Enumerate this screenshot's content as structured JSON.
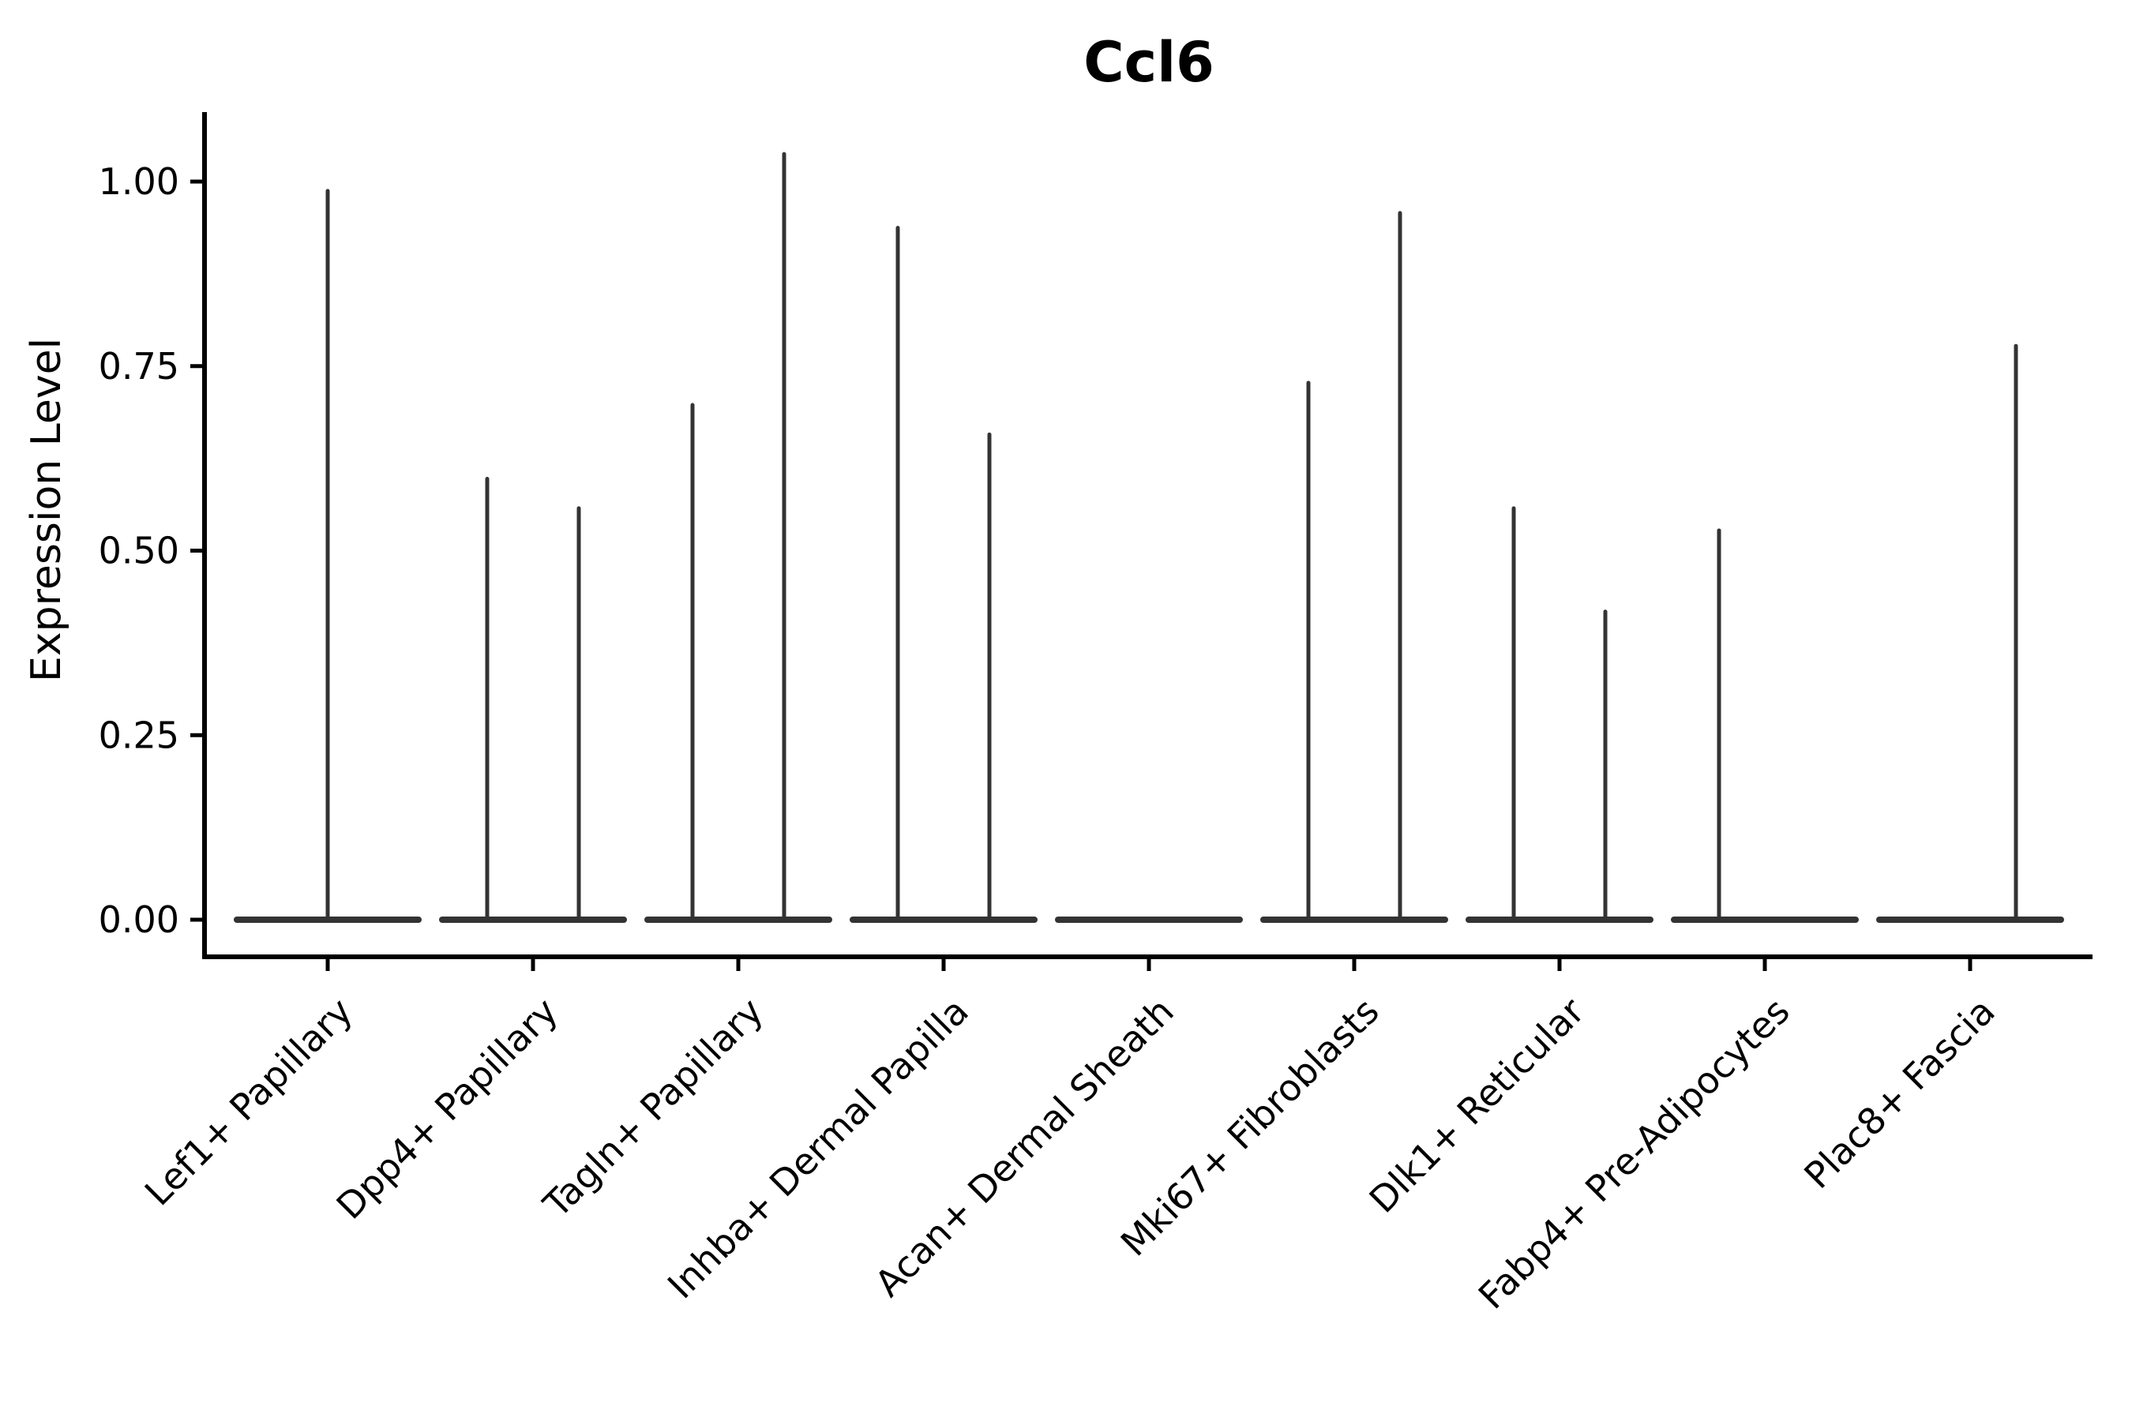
{
  "figure": {
    "background": "#ffffff"
  },
  "chart_data": {
    "type": "violin",
    "title": "Ccl6",
    "xlabel": "",
    "ylabel": "Expression Level",
    "categories": [
      "Lef1+ Papillary",
      "Dpp4+ Papillary",
      "Tagln+ Papillary",
      "Inhba+ Dermal Papilla",
      "Acan+ Dermal Sheath",
      "Mki67+ Fibroblasts",
      "Dlk1+ Reticular",
      "Fabp4+ Pre-Adipocytes",
      "Plac8+ Fascia"
    ],
    "ytick_labels": [
      "0.00",
      "0.25",
      "0.50",
      "0.75",
      "1.00"
    ],
    "ytick_values": [
      0.0,
      0.25,
      0.5,
      0.75,
      1.0
    ],
    "ylim": [
      -0.05,
      1.09
    ],
    "grid": false,
    "legend": "none",
    "x_tick_rotation_deg": 45,
    "baseline_value": 0.0,
    "colors": {
      "violin": "#333333",
      "axis": "#000000",
      "text": "#000000"
    },
    "violins": [
      {
        "category": "Lef1+ Papillary",
        "spikes": [
          {
            "position": "center",
            "max": 0.99
          }
        ]
      },
      {
        "category": "Dpp4+ Papillary",
        "spikes": [
          {
            "position": "left",
            "max": 0.6
          },
          {
            "position": "right",
            "max": 0.56
          }
        ]
      },
      {
        "category": "Tagln+ Papillary",
        "spikes": [
          {
            "position": "left",
            "max": 0.7
          },
          {
            "position": "right",
            "max": 1.04
          }
        ]
      },
      {
        "category": "Inhba+ Dermal Papilla",
        "spikes": [
          {
            "position": "left",
            "max": 0.94
          },
          {
            "position": "right",
            "max": 0.66
          }
        ]
      },
      {
        "category": "Acan+ Dermal Sheath",
        "spikes": []
      },
      {
        "category": "Mki67+ Fibroblasts",
        "spikes": [
          {
            "position": "left",
            "max": 0.73
          },
          {
            "position": "right",
            "max": 0.96
          }
        ]
      },
      {
        "category": "Dlk1+ Reticular",
        "spikes": [
          {
            "position": "left",
            "max": 0.56
          },
          {
            "position": "right",
            "max": 0.42
          }
        ]
      },
      {
        "category": "Fabp4+ Pre-Adipocytes",
        "spikes": [
          {
            "position": "left",
            "max": 0.53
          }
        ]
      },
      {
        "category": "Plac8+ Fascia",
        "spikes": [
          {
            "position": "right",
            "max": 0.78
          }
        ]
      }
    ]
  }
}
